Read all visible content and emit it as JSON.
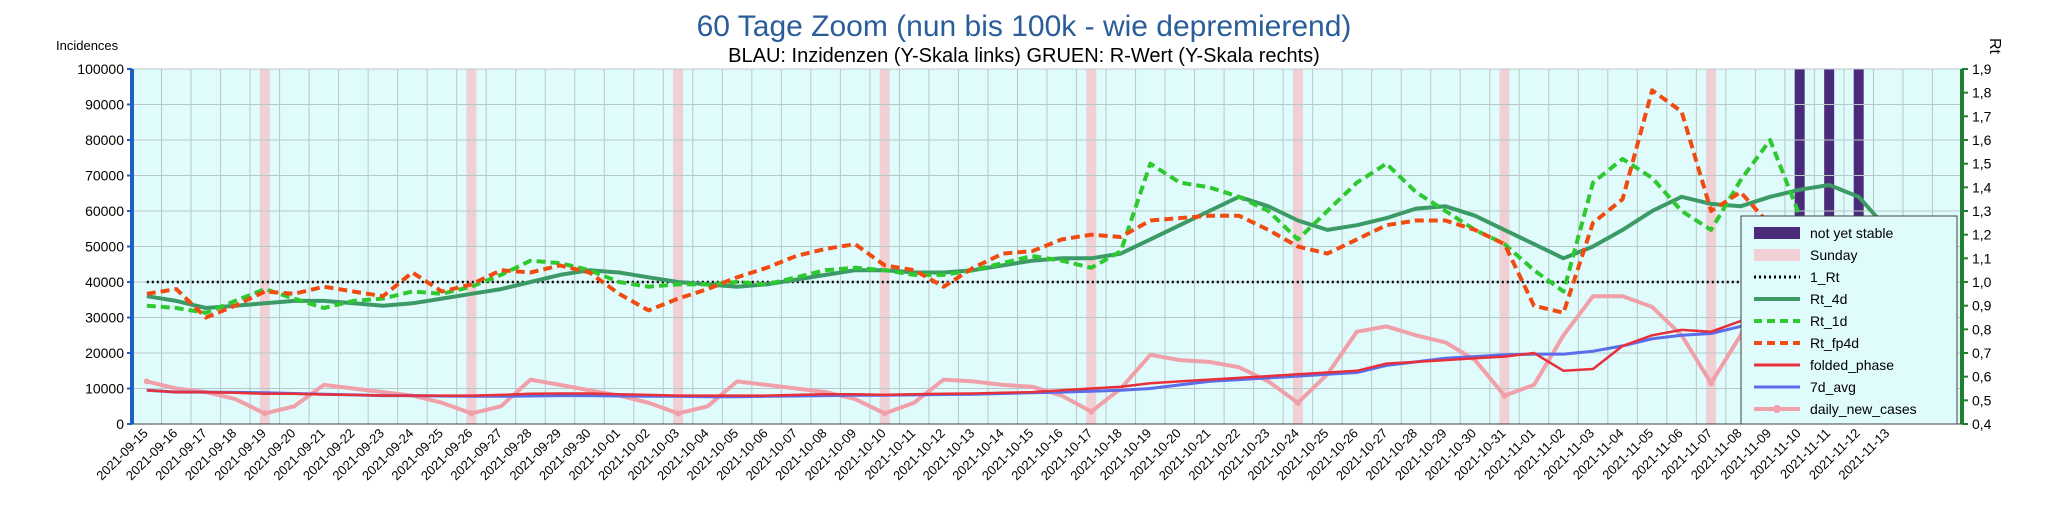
{
  "chart_data": {
    "type": "line",
    "title": "60 Tage Zoom  (nun bis 100k - wie depremierend)",
    "subtitle": "BLAU: Inzidenzen (Y-Skala links)     GRUEN: R-Wert (Y-Skala rechts)",
    "ylabel_left": "Incidences",
    "ylabel_right": "Rt",
    "ylim_left": [
      0,
      100000
    ],
    "ylim_right": [
      0.4,
      1.9
    ],
    "y_ticks_left": [
      "0",
      "10000",
      "20000",
      "30000",
      "40000",
      "50000",
      "60000",
      "70000",
      "80000",
      "90000",
      "100000"
    ],
    "y_ticks_right": [
      "0,4",
      "0,5",
      "0,6",
      "0,7",
      "0,8",
      "0,9",
      "1,0",
      "1,1",
      "1,2",
      "1,3",
      "1,4",
      "1,5",
      "1,6",
      "1,7",
      "1,8",
      "1,9"
    ],
    "grid": true,
    "legend_position": "right",
    "categories": [
      "2021-09-15",
      "2021-09-16",
      "2021-09-17",
      "2021-09-18",
      "2021-09-19",
      "2021-09-20",
      "2021-09-21",
      "2021-09-22",
      "2021-09-23",
      "2021-09-24",
      "2021-09-25",
      "2021-09-26",
      "2021-09-27",
      "2021-09-28",
      "2021-09-29",
      "2021-09-30",
      "2021-10-01",
      "2021-10-02",
      "2021-10-03",
      "2021-10-04",
      "2021-10-05",
      "2021-10-06",
      "2021-10-07",
      "2021-10-08",
      "2021-10-09",
      "2021-10-10",
      "2021-10-11",
      "2021-10-12",
      "2021-10-13",
      "2021-10-14",
      "2021-10-15",
      "2021-10-16",
      "2021-10-17",
      "2021-10-18",
      "2021-10-19",
      "2021-10-20",
      "2021-10-21",
      "2021-10-22",
      "2021-10-23",
      "2021-10-24",
      "2021-10-25",
      "2021-10-26",
      "2021-10-27",
      "2021-10-28",
      "2021-10-29",
      "2021-10-30",
      "2021-10-31",
      "2021-11-01",
      "2021-11-02",
      "2021-11-03",
      "2021-11-04",
      "2021-11-05",
      "2021-11-06",
      "2021-11-07",
      "2021-11-08",
      "2021-11-09",
      "2021-11-10",
      "2021-11-11",
      "2021-11-12",
      "2021-11-13"
    ],
    "sunday_indices": [
      4,
      11,
      18,
      25,
      32,
      39,
      46,
      53
    ],
    "not_yet_stable_indices": [
      56,
      57,
      58
    ],
    "series_left": [
      {
        "name": "daily_new_cases",
        "color": "#f0a0a8",
        "values": [
          12000,
          10000,
          9000,
          7000,
          3000,
          5000,
          11000,
          10000,
          9000,
          8000,
          6000,
          3000,
          5000,
          12500,
          11000,
          9500,
          8000,
          6000,
          3000,
          5000,
          12000,
          11000,
          10000,
          9000,
          7000,
          3000,
          6000,
          12500,
          12000,
          11000,
          10500,
          8000,
          3500,
          10000,
          19500,
          18000,
          17500,
          16000,
          12000,
          6000,
          14000,
          26000,
          27500,
          25000,
          23000,
          18000,
          8000,
          11000,
          25000,
          36000,
          36000,
          33000,
          25000,
          11500,
          25000,
          46000,
          50000,
          48000,
          42000,
          22000
        ]
      },
      {
        "name": "folded_phase",
        "color": "#e8303a",
        "values": [
          9500,
          9000,
          9000,
          8800,
          8500,
          8500,
          8300,
          8200,
          8000,
          8000,
          8000,
          8000,
          8200,
          8500,
          8600,
          8600,
          8400,
          8200,
          8000,
          8000,
          8000,
          8000,
          8200,
          8400,
          8400,
          8200,
          8400,
          8500,
          8600,
          8800,
          9000,
          9500,
          10000,
          10500,
          11500,
          12000,
          12500,
          13000,
          13500,
          14000,
          14500,
          15000,
          17000,
          17500,
          18000,
          18500,
          19000,
          20000,
          15000,
          15500,
          22000,
          25000,
          26500,
          26000,
          29000,
          36000,
          34000,
          29000,
          30000,
          24000
        ]
      },
      {
        "name": "7d_avg",
        "color": "#5b6de8",
        "values": [
          9500,
          9000,
          9000,
          8900,
          8800,
          8600,
          8400,
          8200,
          8000,
          8000,
          7900,
          7800,
          7800,
          7900,
          8000,
          8000,
          7900,
          7800,
          7800,
          7700,
          7700,
          7800,
          7900,
          8000,
          8100,
          8100,
          8200,
          8300,
          8400,
          8600,
          8800,
          9000,
          9200,
          9500,
          10000,
          11000,
          12000,
          12500,
          13000,
          13500,
          14000,
          14500,
          16500,
          17500,
          18500,
          19000,
          19500,
          19700,
          19700,
          20500,
          22000,
          24000,
          25000,
          25500,
          27500,
          31000,
          33000,
          34000,
          35000,
          34000
        ]
      }
    ],
    "series_right": [
      {
        "name": "1_Rt",
        "color": "#000000",
        "values": [
          1.0,
          1.0,
          1.0,
          1.0,
          1.0,
          1.0,
          1.0,
          1.0,
          1.0,
          1.0,
          1.0,
          1.0,
          1.0,
          1.0,
          1.0,
          1.0,
          1.0,
          1.0,
          1.0,
          1.0,
          1.0,
          1.0,
          1.0,
          1.0,
          1.0,
          1.0,
          1.0,
          1.0,
          1.0,
          1.0,
          1.0,
          1.0,
          1.0,
          1.0,
          1.0,
          1.0,
          1.0,
          1.0,
          1.0,
          1.0,
          1.0,
          1.0,
          1.0,
          1.0,
          1.0,
          1.0,
          1.0,
          1.0,
          1.0,
          1.0,
          1.0,
          1.0,
          1.0,
          1.0,
          1.0,
          1.0,
          1.0,
          1.0,
          1.0,
          1.0
        ]
      },
      {
        "name": "Rt_4d",
        "color": "#3c9a66",
        "values": [
          0.94,
          0.92,
          0.89,
          0.9,
          0.91,
          0.92,
          0.92,
          0.91,
          0.9,
          0.91,
          0.93,
          0.95,
          0.97,
          1.0,
          1.03,
          1.05,
          1.04,
          1.02,
          1.0,
          0.99,
          0.98,
          0.99,
          1.01,
          1.03,
          1.05,
          1.05,
          1.04,
          1.04,
          1.05,
          1.07,
          1.09,
          1.1,
          1.1,
          1.12,
          1.18,
          1.24,
          1.3,
          1.36,
          1.32,
          1.26,
          1.22,
          1.24,
          1.27,
          1.31,
          1.32,
          1.28,
          1.22,
          1.16,
          1.1,
          1.15,
          1.22,
          1.3,
          1.36,
          1.33,
          1.32,
          1.36,
          1.39,
          1.41,
          1.36,
          1.22
        ]
      },
      {
        "name": "Rt_1d",
        "color": "#2ec92e",
        "values": [
          0.9,
          0.89,
          0.87,
          0.92,
          0.97,
          0.93,
          0.89,
          0.92,
          0.93,
          0.96,
          0.95,
          0.98,
          1.03,
          1.09,
          1.08,
          1.05,
          1.0,
          0.98,
          0.99,
          0.99,
          1.0,
          0.99,
          1.02,
          1.05,
          1.06,
          1.05,
          1.03,
          1.03,
          1.05,
          1.08,
          1.11,
          1.09,
          1.06,
          1.13,
          1.5,
          1.42,
          1.4,
          1.36,
          1.3,
          1.18,
          1.3,
          1.42,
          1.5,
          1.38,
          1.3,
          1.22,
          1.16,
          1.05,
          0.96,
          1.42,
          1.52,
          1.44,
          1.3,
          1.22,
          1.43,
          1.6,
          1.28,
          1.18,
          1.12,
          1.0
        ]
      },
      {
        "name": "Rt_fp4d",
        "color": "#f04c12",
        "values": [
          0.95,
          0.97,
          0.85,
          0.9,
          0.96,
          0.95,
          0.98,
          0.96,
          0.94,
          1.04,
          0.96,
          0.99,
          1.05,
          1.04,
          1.07,
          1.04,
          0.95,
          0.88,
          0.93,
          0.97,
          1.02,
          1.06,
          1.11,
          1.14,
          1.16,
          1.07,
          1.05,
          0.98,
          1.06,
          1.12,
          1.13,
          1.18,
          1.2,
          1.19,
          1.26,
          1.27,
          1.28,
          1.28,
          1.22,
          1.15,
          1.12,
          1.18,
          1.24,
          1.26,
          1.26,
          1.22,
          1.16,
          0.9,
          0.87,
          1.25,
          1.35,
          1.81,
          1.72,
          1.3,
          1.38,
          1.24,
          1.08,
          0.98,
          0.9,
          0.73
        ]
      }
    ],
    "legend": [
      {
        "name": "not yet stable",
        "color": "#4b2a7a",
        "style": "bar"
      },
      {
        "name": "Sunday",
        "color": "#f0d0d4",
        "style": "bar"
      },
      {
        "name": "1_Rt",
        "color": "#000000",
        "style": "dotted"
      },
      {
        "name": "Rt_4d",
        "color": "#3c9a66",
        "style": "solid-thick"
      },
      {
        "name": "Rt_1d",
        "color": "#2ec92e",
        "style": "dashed"
      },
      {
        "name": "Rt_fp4d",
        "color": "#f04c12",
        "style": "dashed"
      },
      {
        "name": "folded_phase",
        "color": "#e8303a",
        "style": "solid"
      },
      {
        "name": "7d_avg",
        "color": "#5b6de8",
        "style": "solid"
      },
      {
        "name": "daily_new_cases",
        "color": "#f0a0a8",
        "style": "marker"
      }
    ]
  }
}
